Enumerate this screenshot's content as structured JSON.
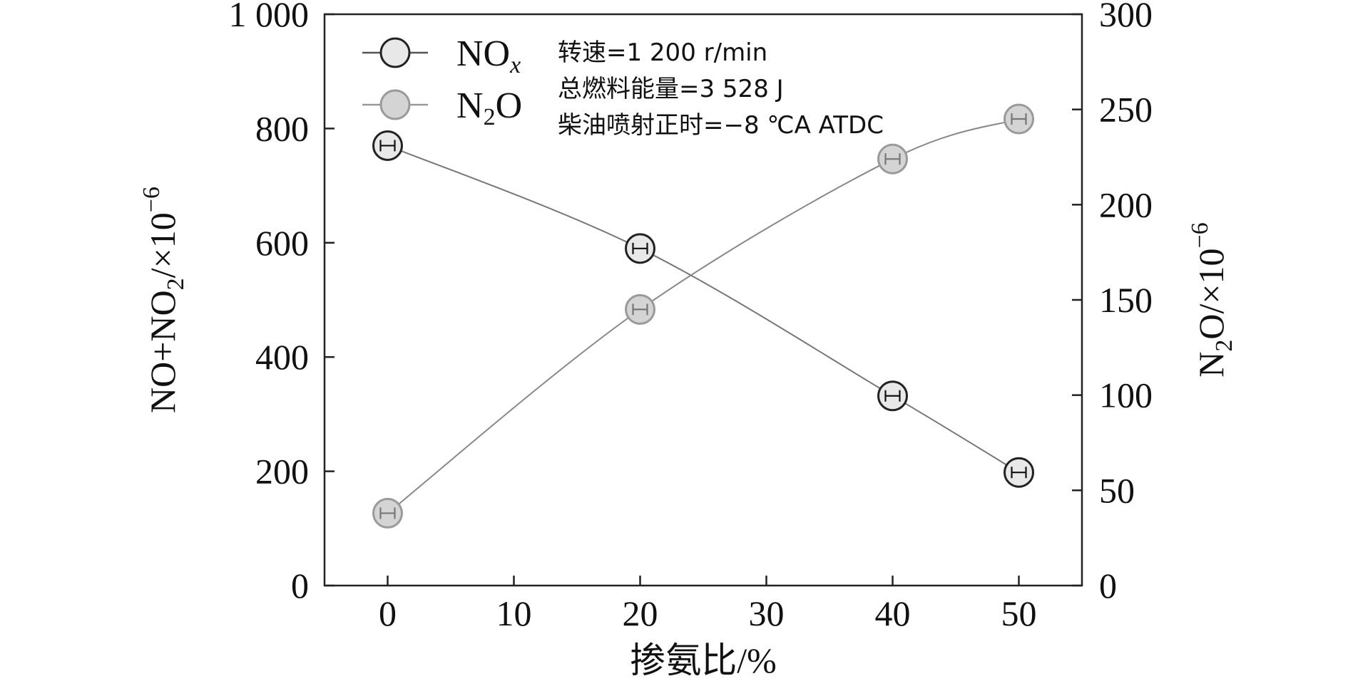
{
  "chart_data": {
    "type": "line",
    "x": [
      0,
      20,
      40,
      50
    ],
    "xlabel": "掺氨比/%",
    "xticks": [
      "0",
      "10",
      "20",
      "30",
      "40",
      "50"
    ],
    "xlim": [
      -5,
      55
    ],
    "y_left": {
      "label_base": "NO+NO",
      "label_sub": "2",
      "label_tail": "/×10",
      "label_sup": "−6",
      "lim": [
        0,
        1000
      ],
      "ticks": [
        "0",
        "200",
        "400",
        "600",
        "800",
        "1 000"
      ]
    },
    "y_right": {
      "label_base": "N",
      "label_sub": "2",
      "label_tail": "O/×10",
      "label_sup": "−6",
      "lim": [
        0,
        300
      ],
      "ticks": [
        "0",
        "50",
        "100",
        "150",
        "200",
        "250",
        "300"
      ]
    },
    "series": [
      {
        "name_base": "NO",
        "name_sub": "x",
        "axis": "left",
        "values": [
          770,
          590,
          332,
          198
        ],
        "line_color": "#777777",
        "marker_fill": "#e8e8e8",
        "marker_stroke": "#222222",
        "errorbar_color": "#111111"
      },
      {
        "name_base": "N",
        "name_sub": "2",
        "name_tail": "O",
        "axis": "right",
        "values": [
          38,
          145,
          224,
          245
        ],
        "line_color": "#888888",
        "marker_fill": "#d4d4d4",
        "marker_stroke": "#9a9a9a",
        "errorbar_color": "#777777"
      }
    ],
    "annotations": [
      "转速=1 200 r/min",
      "总燃料能量=3 528 J",
      "柴油喷射正时=−8 ℃A ATDC"
    ],
    "legend_position": "top-left",
    "grid": false
  }
}
